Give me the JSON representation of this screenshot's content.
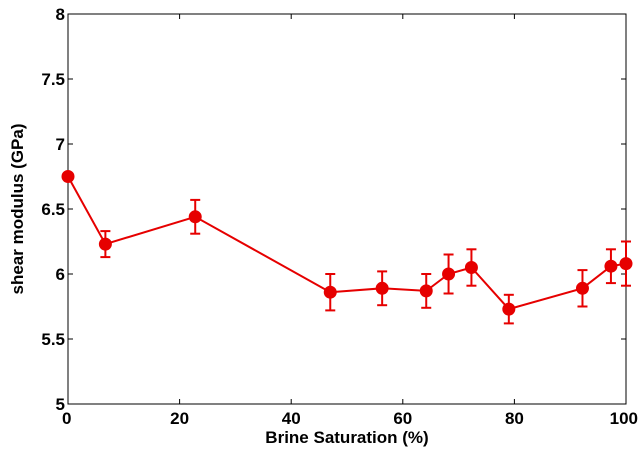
{
  "chart_data": {
    "type": "line",
    "title": "",
    "xlabel": "Brine Saturation (%)",
    "ylabel": "shear modulus (GPa)",
    "xlim": [
      0,
      100
    ],
    "ylim": [
      5,
      8
    ],
    "x_ticks": [
      "0",
      "20",
      "40",
      "60",
      "80",
      "100"
    ],
    "y_ticks": [
      "5",
      "5.5",
      "6",
      "6.5",
      "7",
      "7.5",
      "8"
    ],
    "grid": false,
    "legend": "none",
    "color": "#e60000",
    "series": [
      {
        "x": [
          0,
          6.7,
          22.8,
          47,
          56.3,
          64.2,
          68.2,
          72.3,
          79,
          92.2,
          97.3,
          100
        ],
        "y": [
          6.75,
          6.23,
          6.44,
          5.86,
          5.89,
          5.87,
          6.0,
          6.05,
          5.73,
          5.89,
          6.06,
          6.08
        ],
        "error": [
          0,
          0.1,
          0.13,
          0.14,
          0.13,
          0.13,
          0.15,
          0.14,
          0.11,
          0.14,
          0.13,
          0.17
        ]
      }
    ]
  }
}
